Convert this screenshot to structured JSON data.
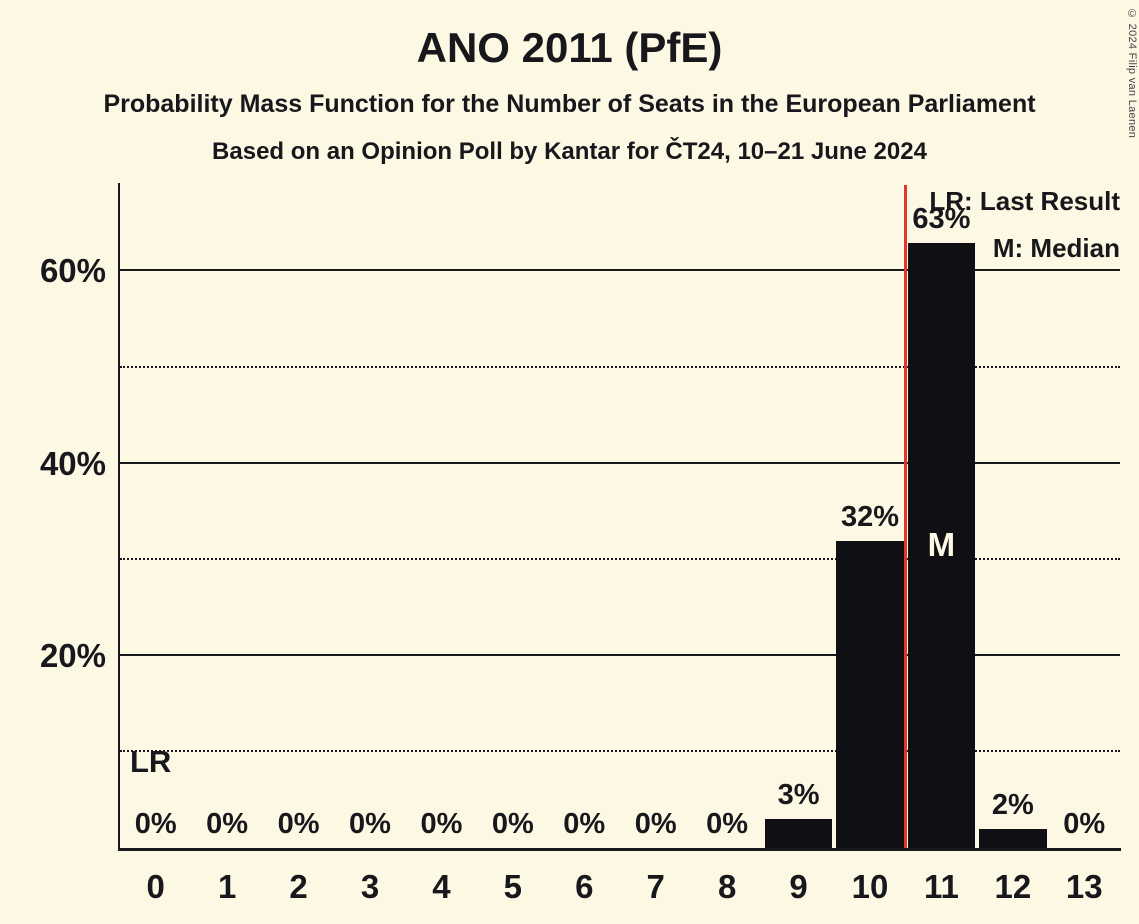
{
  "copyright": "© 2024 Filip van Laenen",
  "chart_data": {
    "type": "bar",
    "title": "ANO 2011 (PfE)",
    "subtitles": [
      "Probability Mass Function for the Number of Seats in the European Parliament",
      "Based on an Opinion Poll by Kantar for ČT24, 10–21 June 2024"
    ],
    "categories": [
      "0",
      "1",
      "2",
      "3",
      "4",
      "5",
      "6",
      "7",
      "8",
      "9",
      "10",
      "11",
      "12",
      "13"
    ],
    "values": [
      0,
      0,
      0,
      0,
      0,
      0,
      0,
      0,
      0,
      3,
      32,
      63,
      2,
      0
    ],
    "bar_labels": [
      "0%",
      "0%",
      "0%",
      "0%",
      "0%",
      "0%",
      "0%",
      "0%",
      "0%",
      "3%",
      "32%",
      "63%",
      "2%",
      "0%"
    ],
    "ylim": [
      0,
      69
    ],
    "yticks": [
      {
        "value": 20,
        "label": "20%"
      },
      {
        "value": 40,
        "label": "40%"
      },
      {
        "value": 60,
        "label": "60%"
      }
    ],
    "solid_gridlines": [
      20,
      40,
      60
    ],
    "dotted_gridlines": [
      10,
      30,
      50
    ],
    "grid": true,
    "legend_position": "top-right",
    "legend": [
      "LR: Last Result",
      "M: Median"
    ],
    "last_result": 10.5,
    "last_result_label": "LR",
    "median_category": "11",
    "median_label": "M",
    "colors": {
      "bar": "#101014",
      "last_result_line": "#e0362c",
      "background": "#fcf8e4",
      "text": "#17171c",
      "median_text": "#fcf8e4"
    }
  }
}
